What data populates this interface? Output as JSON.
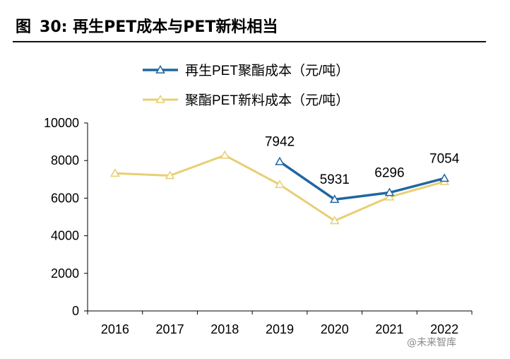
{
  "figure": {
    "label": "图",
    "number": "30:",
    "title": "再生PET成本与PET新料相当"
  },
  "watermark": "@未来智库",
  "chart_data": {
    "type": "line",
    "categories": [
      "2016",
      "2017",
      "2018",
      "2019",
      "2020",
      "2021",
      "2022"
    ],
    "ylim": [
      0,
      10000
    ],
    "yticks": [
      0,
      2000,
      4000,
      6000,
      8000,
      10000
    ],
    "grid": false,
    "legend_position": "top",
    "series": [
      {
        "name": "再生PET聚酯成本（元/吨）",
        "color": "#1f66a0",
        "values": [
          null,
          null,
          null,
          7942,
          5931,
          6296,
          7054
        ],
        "data_labels": [
          null,
          null,
          null,
          "7942",
          "5931",
          "6296",
          "7054"
        ]
      },
      {
        "name": "聚酯PET新料成本（元/吨）",
        "color": "#e8cf72",
        "values": [
          7320,
          7200,
          8280,
          6720,
          4800,
          6060,
          6880
        ]
      }
    ]
  }
}
